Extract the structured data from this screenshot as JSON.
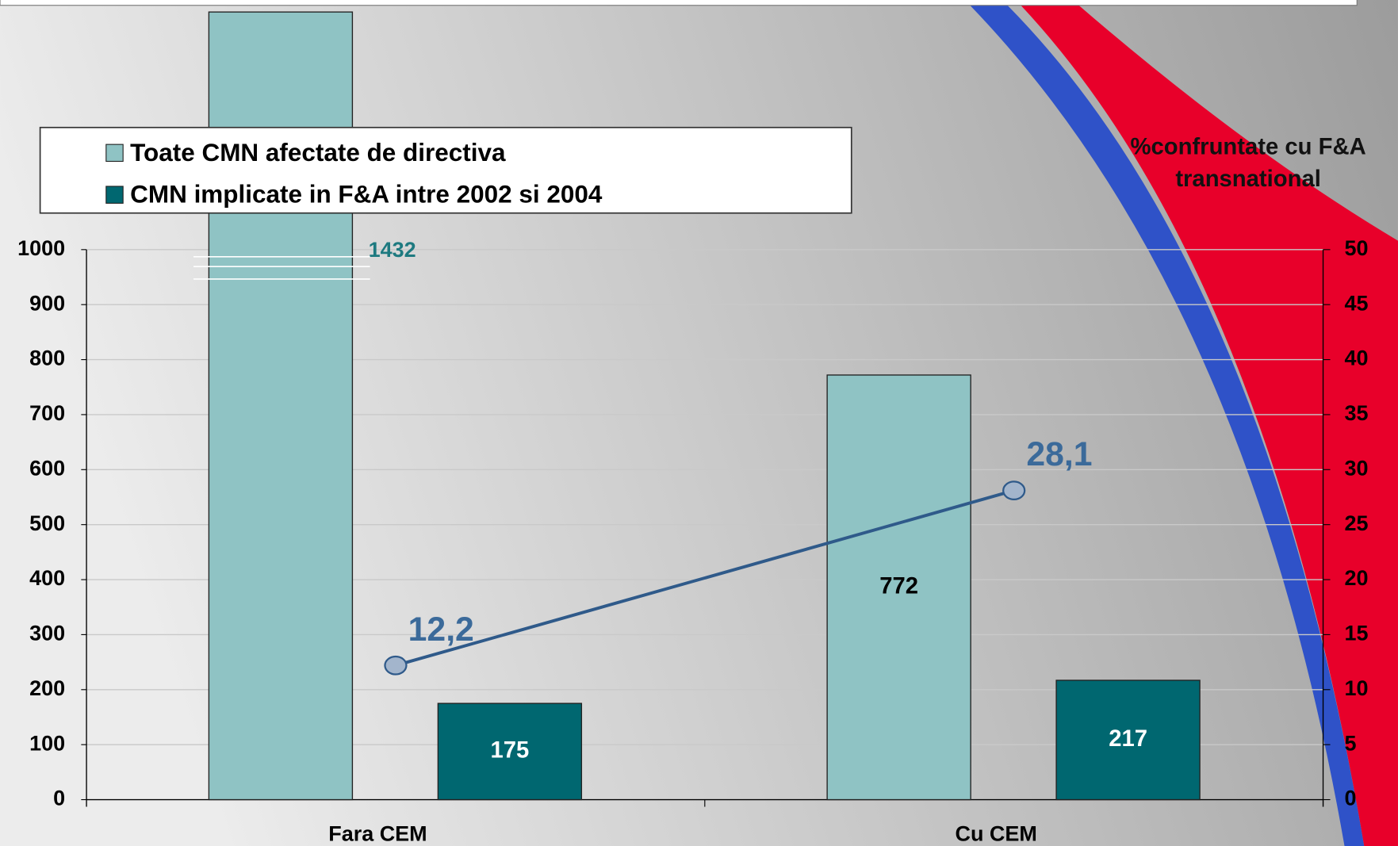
{
  "chart_data": {
    "type": "bar",
    "categories": [
      "Fara CEM",
      "Cu CEM"
    ],
    "series": [
      {
        "name": "Toate CMN afectate de directiva",
        "color": "#8fc3c4",
        "values": [
          1432,
          772
        ],
        "value_labels": [
          "1432",
          "772"
        ]
      },
      {
        "name": "CMN implicate in F&A intre 2002 si 2004",
        "color": "#006770",
        "values": [
          175,
          217
        ],
        "value_labels": [
          "175",
          "217"
        ]
      },
      {
        "type": "line",
        "axis": "y2",
        "color": "#2f5a8a",
        "values": [
          12.2,
          28.1
        ],
        "value_labels": [
          "12,2",
          "28,1"
        ]
      }
    ],
    "y2_title": "%confruntate cu F&A transnational",
    "ylim": [
      0,
      1000
    ],
    "yticks": [
      0,
      100,
      200,
      300,
      400,
      500,
      600,
      700,
      800,
      900,
      1000
    ],
    "y2lim": [
      0,
      50
    ],
    "y2ticks": [
      0,
      5,
      10,
      15,
      20,
      25,
      30,
      35,
      40,
      45,
      50
    ],
    "grid": true
  }
}
